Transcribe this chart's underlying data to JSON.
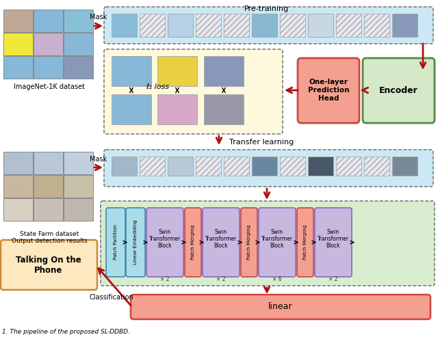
{
  "title_pretrain": "Pre-training",
  "title_transfer": "Transfer learning",
  "title_classification": "Classification",
  "caption": "1. The pipeline of the proposed SL-DDBD.",
  "imagenet_label": "ImageNet-1K dataset",
  "statefarm_label": "State Farm dataset\nOutput detection results",
  "talking_label": "Talking On the\nPhone",
  "mask_label": "Mask",
  "encoder_label": "Encoder",
  "prediction_head_label": "One-layer\nPrediction\nHead",
  "l1_loss_label": "ℓ₁ loss",
  "linear_label": "linear",
  "patch_partition_label": "Patch Partition",
  "linear_embedding_label": "Linear Embedding",
  "swin_block_label": "Swin\nTransformer\nBlock",
  "patch_merging_label": "Patch Merging",
  "x2_labels": [
    "× 2",
    "× 2",
    "× 6",
    "× 2"
  ],
  "colors": {
    "background": "#ffffff",
    "patch_strip_bg": "#cce8f4",
    "yellow_box_bg": "#fef9dc",
    "encoder_bg": "#d5e8c8",
    "pred_head_bg": "#f4a090",
    "linear_bg": "#f4a090",
    "talking_bg": "#fde8c0",
    "arrow_red": "#aa1111",
    "patch_partition_bg": "#a8dce8",
    "linear_embed_bg": "#a8dce8",
    "swin_block_bg": "#c8b8e0",
    "patch_merging_bg": "#f4a090",
    "swin_area_bg": "#d8ecd0",
    "dashed_edge": "#666666",
    "encoder_edge": "#558844",
    "pred_edge": "#cc4444",
    "swin_edge": "#8866bb",
    "pm_edge": "#cc4444",
    "pp_le_edge": "#4488aa"
  }
}
